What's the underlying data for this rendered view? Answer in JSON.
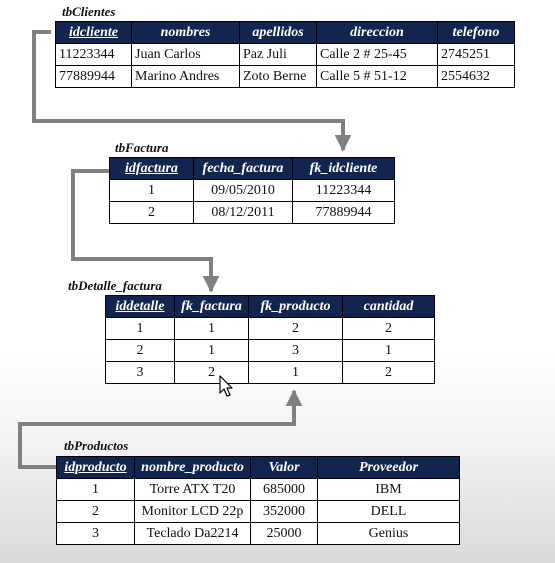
{
  "tables": {
    "clientes": {
      "name": "tbClientes",
      "columns": [
        "idcliente",
        "nombres",
        "apellidos",
        "direccion",
        "telefono"
      ],
      "rows": [
        [
          "11223344",
          "Juan Carlos",
          "Paz Juli",
          "Calle 2 # 25-45",
          "2745251"
        ],
        [
          "77889944",
          "Marino Andres",
          "Zoto Berne",
          "Calle 5 # 51-12",
          "2554632"
        ]
      ]
    },
    "factura": {
      "name": "tbFactura",
      "columns": [
        "idfactura",
        "fecha_factura",
        "fk_idcliente"
      ],
      "rows": [
        [
          "1",
          "09/05/2010",
          "11223344"
        ],
        [
          "2",
          "08/12/2011",
          "77889944"
        ]
      ]
    },
    "detalle": {
      "name": "tbDetalle_factura",
      "columns": [
        "iddetalle",
        "fk_factura",
        "fk_producto",
        "cantidad"
      ],
      "rows": [
        [
          "1",
          "1",
          "2",
          "2"
        ],
        [
          "2",
          "1",
          "3",
          "1"
        ],
        [
          "3",
          "2",
          "1",
          "2"
        ]
      ]
    },
    "productos": {
      "name": "tbProductos",
      "columns": [
        "idproducto",
        "nombre_producto",
        "Valor",
        "Proveedor"
      ],
      "rows": [
        [
          "1",
          "Torre ATX T20",
          "685000",
          "IBM"
        ],
        [
          "2",
          "Monitor LCD 22p",
          "352000",
          "DELL"
        ],
        [
          "3",
          "Teclado Da2214",
          "25000",
          "Genius"
        ]
      ]
    }
  },
  "colors": {
    "header_bg": "#11254f",
    "connector": "#808080"
  }
}
